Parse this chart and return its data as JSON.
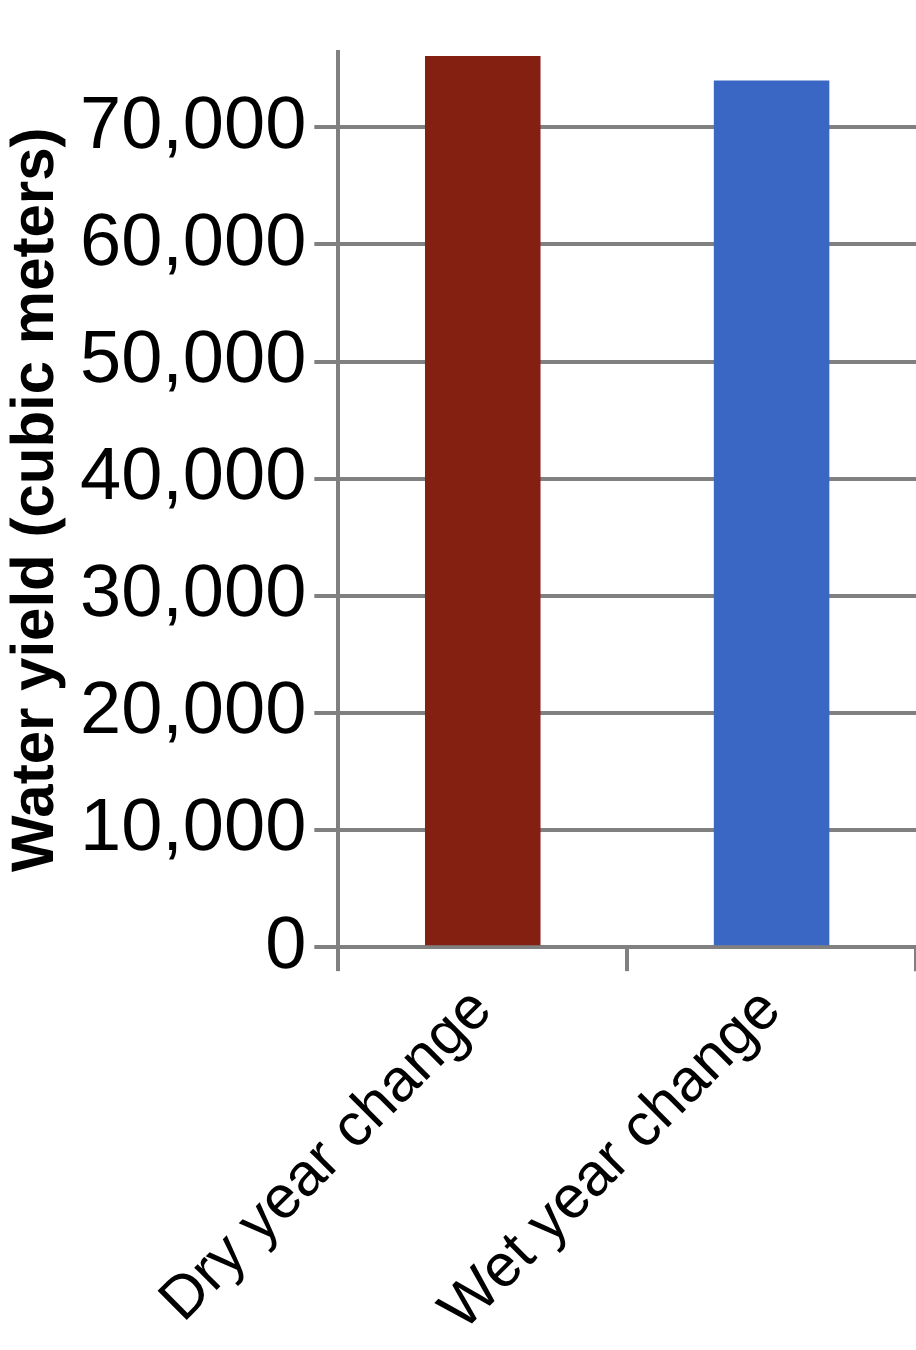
{
  "chart_data": {
    "type": "bar",
    "ylabel": "Water yield (cubic meters)",
    "categories": [
      "Dry year change",
      "Wet year change"
    ],
    "colors": [
      "#842012",
      "#3a67c4"
    ],
    "values": [
      76100,
      74000
    ],
    "ylim": [
      0,
      76400
    ],
    "yticks": [
      0,
      {
        "value": 10000,
        "label": "10,000"
      },
      {
        "value": 20000,
        "label": "20,000"
      },
      {
        "value": 30000,
        "label": "30,000"
      },
      {
        "value": 40000,
        "label": "40,000"
      },
      {
        "value": 50000,
        "label": "50,000"
      },
      {
        "value": 60000,
        "label": "60,000"
      },
      {
        "value": 70000,
        "label": "70,000"
      }
    ],
    "grid": "y",
    "legend": false
  }
}
